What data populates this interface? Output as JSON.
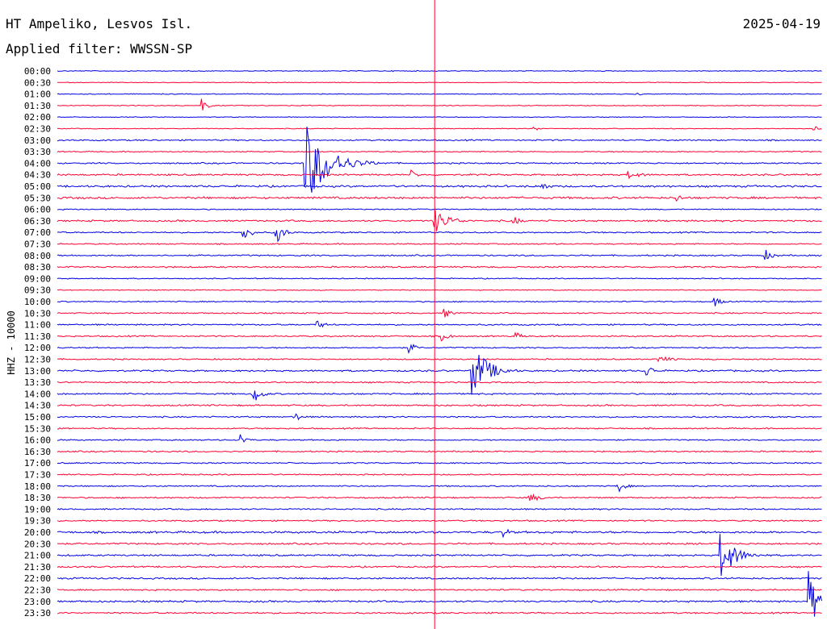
{
  "header": {
    "station": "HT Ampeliko, Lesvos Isl.",
    "filter": "Applied filter: WWSSN-SP",
    "date": "2025-04-19"
  },
  "chart_data": {
    "type": "line",
    "title": "HT Ampeliko, Lesvos Isl.",
    "subtitle": "Applied filter: WWSSN-SP",
    "ylabel": "HHZ - 10000",
    "date": "2025-04-19",
    "trace_colors": [
      "#0000e6",
      "#ff0033"
    ],
    "marker_color": "#ff0033",
    "rows": [
      "00:00",
      "00:30",
      "01:00",
      "01:30",
      "02:00",
      "02:30",
      "03:00",
      "03:30",
      "04:00",
      "04:30",
      "05:00",
      "05:30",
      "06:00",
      "06:30",
      "07:00",
      "07:30",
      "08:00",
      "08:30",
      "09:00",
      "09:30",
      "10:00",
      "10:30",
      "11:00",
      "11:30",
      "12:00",
      "12:30",
      "13:00",
      "13:30",
      "14:00",
      "14:30",
      "15:00",
      "15:30",
      "16:00",
      "16:30",
      "17:00",
      "17:30",
      "18:00",
      "18:30",
      "19:00",
      "19:30",
      "20:00",
      "20:30",
      "21:00",
      "21:30",
      "22:00",
      "22:30",
      "23:00",
      "23:30"
    ],
    "row_minutes": 30,
    "marker_minute": 14.8,
    "noise": [
      0.6,
      0.5,
      0.6,
      0.6,
      0.5,
      0.6,
      1.0,
      0.8,
      1.0,
      1.2,
      1.4,
      1.5,
      0.8,
      1.2,
      1.0,
      0.9,
      1.0,
      1.1,
      0.7,
      0.6,
      0.8,
      0.9,
      1.0,
      1.0,
      0.9,
      0.9,
      1.2,
      1.0,
      1.1,
      1.1,
      1.0,
      0.9,
      0.9,
      1.0,
      0.9,
      0.9,
      0.9,
      1.0,
      1.0,
      1.0,
      1.5,
      1.2,
      1.2,
      1.1,
      1.2,
      1.0,
      1.3,
      1.1
    ],
    "events": [
      {
        "row": "01:00",
        "minute": 22.8,
        "amplitude": 2,
        "duration_min": 0.3
      },
      {
        "row": "01:30",
        "minute": 5.7,
        "amplitude": 9,
        "duration_min": 0.4
      },
      {
        "row": "02:30",
        "minute": 18.7,
        "amplitude": 3,
        "duration_min": 0.5
      },
      {
        "row": "02:30",
        "minute": 29.7,
        "amplitude": 3,
        "duration_min": 0.5
      },
      {
        "row": "04:00",
        "minute": 9.7,
        "amplitude": 55,
        "duration_min": 1.8
      },
      {
        "row": "04:30",
        "minute": 13.9,
        "amplitude": 6,
        "duration_min": 0.5
      },
      {
        "row": "04:30",
        "minute": 22.4,
        "amplitude": 5,
        "duration_min": 1.2
      },
      {
        "row": "05:00",
        "minute": 19.0,
        "amplitude": 6,
        "duration_min": 0.6
      },
      {
        "row": "05:30",
        "minute": 24.3,
        "amplitude": 5,
        "duration_min": 0.6
      },
      {
        "row": "06:30",
        "minute": 14.8,
        "amplitude": 15,
        "duration_min": 1.2
      },
      {
        "row": "06:30",
        "minute": 17.9,
        "amplitude": 6,
        "duration_min": 0.6
      },
      {
        "row": "07:00",
        "minute": 7.3,
        "amplitude": 14,
        "duration_min": 0.5
      },
      {
        "row": "07:00",
        "minute": 8.6,
        "amplitude": 14,
        "duration_min": 0.6
      },
      {
        "row": "08:00",
        "minute": 27.8,
        "amplitude": 7,
        "duration_min": 0.6
      },
      {
        "row": "10:00",
        "minute": 25.8,
        "amplitude": 6,
        "duration_min": 0.6
      },
      {
        "row": "10:30",
        "minute": 15.2,
        "amplitude": 6,
        "duration_min": 0.6
      },
      {
        "row": "11:00",
        "minute": 10.2,
        "amplitude": 6,
        "duration_min": 0.6
      },
      {
        "row": "11:30",
        "minute": 15.1,
        "amplitude": 6,
        "duration_min": 0.6
      },
      {
        "row": "11:30",
        "minute": 18.0,
        "amplitude": 5,
        "duration_min": 0.6
      },
      {
        "row": "12:00",
        "minute": 13.8,
        "amplitude": 8,
        "duration_min": 0.5
      },
      {
        "row": "12:30",
        "minute": 23.6,
        "amplitude": 5,
        "duration_min": 1.0
      },
      {
        "row": "13:00",
        "minute": 16.3,
        "amplitude": 35,
        "duration_min": 1.2
      },
      {
        "row": "13:00",
        "minute": 23.1,
        "amplitude": 9,
        "duration_min": 0.6
      },
      {
        "row": "14:00",
        "minute": 7.7,
        "amplitude": 12,
        "duration_min": 0.6
      },
      {
        "row": "15:00",
        "minute": 9.3,
        "amplitude": 6,
        "duration_min": 0.6
      },
      {
        "row": "16:00",
        "minute": 7.2,
        "amplitude": 8,
        "duration_min": 0.5
      },
      {
        "row": "18:00",
        "minute": 22.0,
        "amplitude": 8,
        "duration_min": 0.6
      },
      {
        "row": "18:30",
        "minute": 18.5,
        "amplitude": 6,
        "duration_min": 1.0
      },
      {
        "row": "20:00",
        "minute": 17.5,
        "amplitude": 7,
        "duration_min": 0.5
      },
      {
        "row": "21:00",
        "minute": 26.0,
        "amplitude": 30,
        "duration_min": 1.2
      },
      {
        "row": "23:00",
        "minute": 29.5,
        "amplitude": 40,
        "duration_min": 0.6
      }
    ]
  }
}
